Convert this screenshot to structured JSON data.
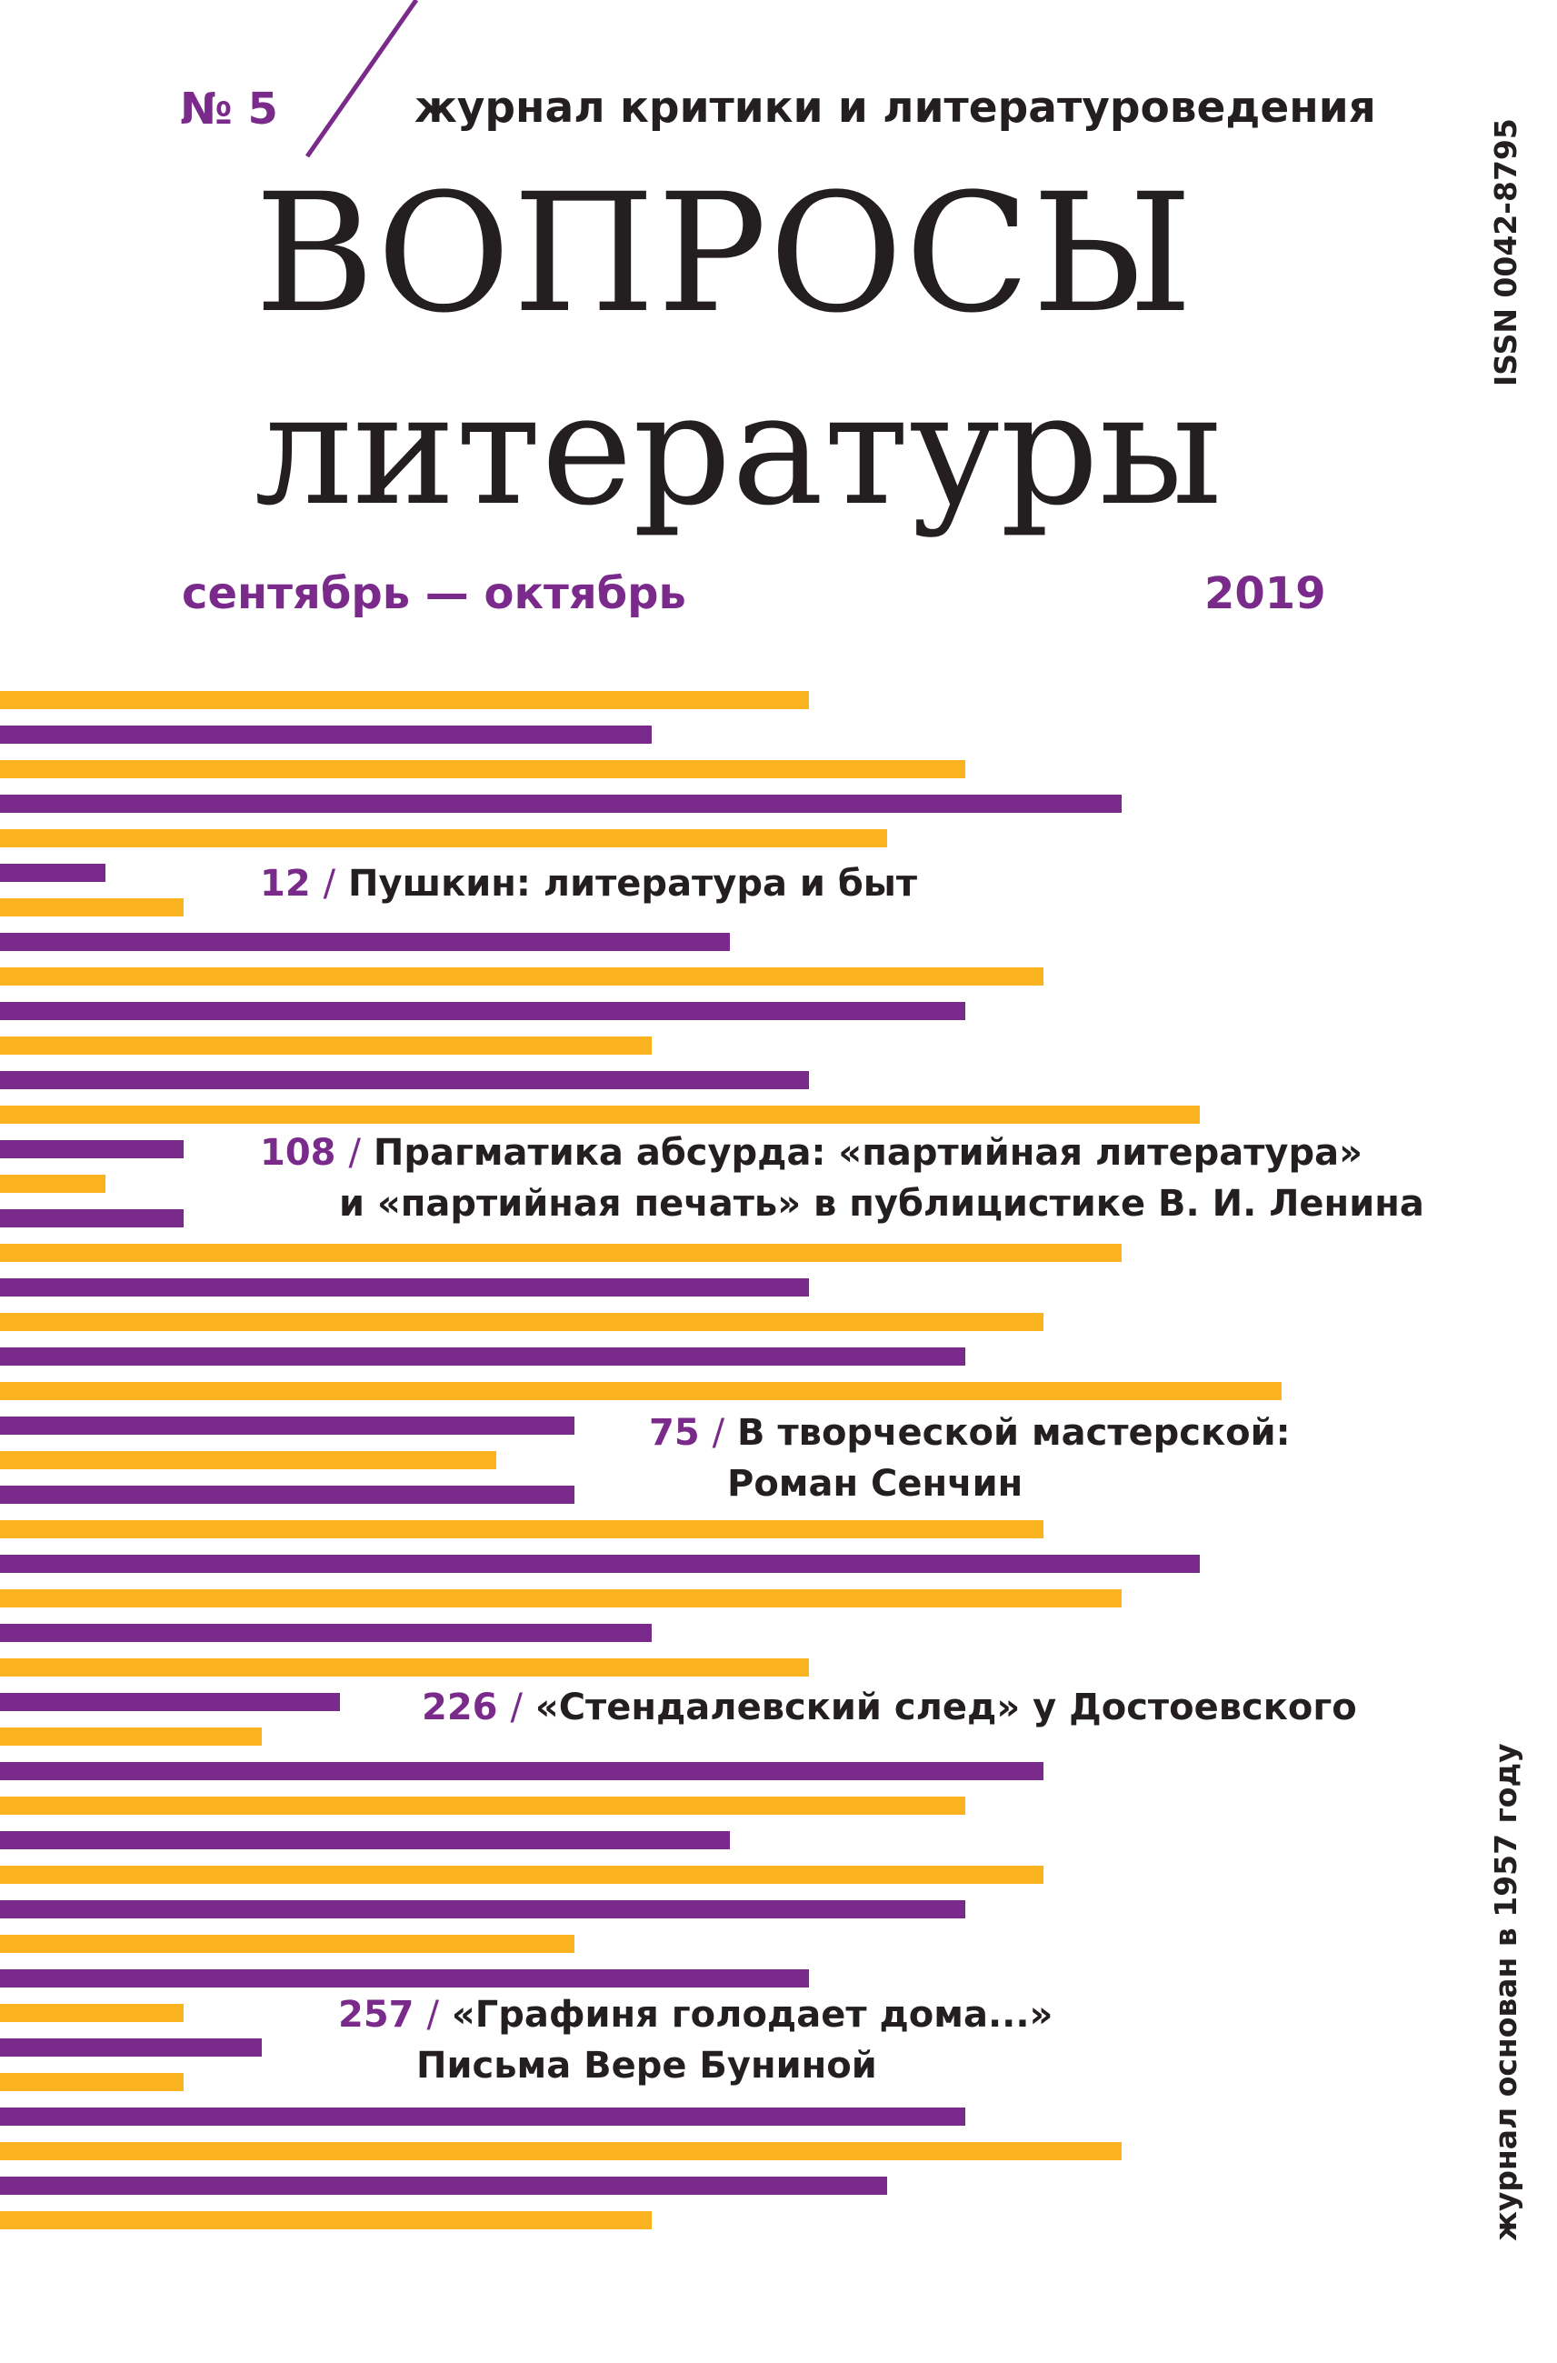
{
  "header": {
    "issue": "№ 5",
    "tagline": "журнал критики и литературоведения"
  },
  "title": {
    "line1": "ВОПРОСЫ",
    "line2": "литературы"
  },
  "dates": {
    "months": "сентябрь — октябрь",
    "year": "2019"
  },
  "side": {
    "issn": "ISSN 0042-8795",
    "founded": "журнал основан в 1957 году"
  },
  "colors": {
    "purple": "#7a2a8a",
    "orange": "#fbb21f",
    "text": "#231f20"
  },
  "contents": [
    {
      "page": "12",
      "separator": "/",
      "line1": "Пушкин: литература и быт",
      "line2": ""
    },
    {
      "page": "108",
      "separator": "/",
      "line1": "Прагматика абсурда: «партийная литература»",
      "line2": "и «партийная печать» в публицистике В. И. Ленина"
    },
    {
      "page": "75",
      "separator": "/",
      "line1": "В творческой мастерской:",
      "line2": "Роман Сенчин"
    },
    {
      "page": "226",
      "separator": "/",
      "line1": "«Стендалевский след» у Достоевского",
      "line2": ""
    },
    {
      "page": "257",
      "separator": "/",
      "line1": "«Графиня голодает дома...»",
      "line2": "Письма Вере Буниной"
    }
  ]
}
